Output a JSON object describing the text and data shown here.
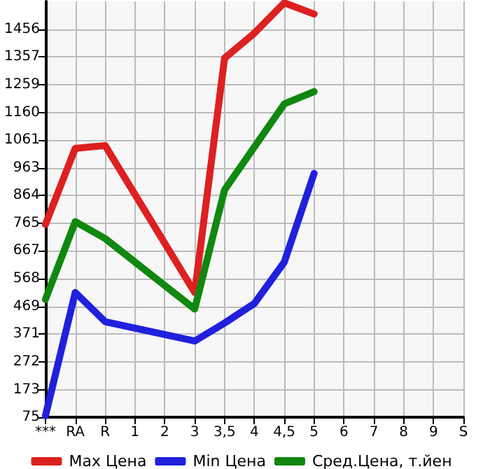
{
  "chart_data": {
    "type": "line",
    "categories": [
      "***",
      "RA",
      "R",
      "1",
      "2",
      "3",
      "3,5",
      "4",
      "4,5",
      "5",
      "6",
      "7",
      "8",
      "9",
      "S"
    ],
    "series": [
      {
        "name": "Max Цена",
        "color": "#dd2020",
        "values": [
          761,
          1032,
          1042,
          null,
          null,
          519,
          1353,
          1442,
          1550,
          1510,
          null,
          null,
          null,
          null,
          null
        ]
      },
      {
        "name": "Min Цена",
        "color": "#2020dd",
        "values": [
          80,
          519,
          415,
          null,
          null,
          346,
          410,
          480,
          627,
          943,
          null,
          null,
          null,
          null,
          null
        ]
      },
      {
        "name": "Сред.Цена, т.йен",
        "color": "#108810",
        "values": [
          494,
          771,
          711,
          null,
          null,
          460,
          884,
          1037,
          1190,
          1234,
          null,
          null,
          null,
          null,
          null
        ]
      }
    ],
    "ylim": [
      75,
      1555
    ],
    "yticks": [
      75,
      173,
      272,
      371,
      469,
      568,
      667,
      765,
      864,
      963,
      1061,
      1160,
      1259,
      1357,
      1456
    ],
    "grid": true,
    "legend": "bottom",
    "marker": "none",
    "line_style": "solid"
  }
}
